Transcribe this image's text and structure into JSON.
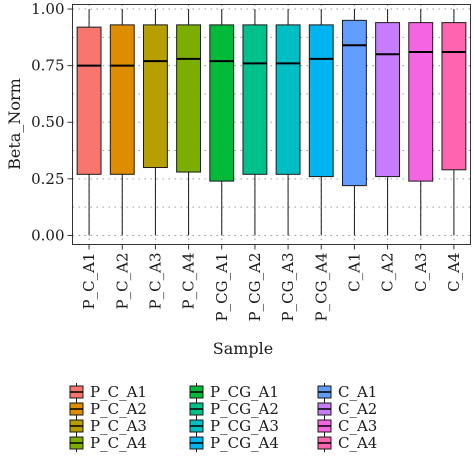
{
  "chart_data": {
    "type": "boxplot",
    "xlabel": "Sample",
    "ylabel": "Beta_Norm",
    "ylim": [
      -0.04,
      1.02
    ],
    "yticks": [
      0.0,
      0.25,
      0.5,
      0.75,
      1.0
    ],
    "ytick_labels": [
      "0.00",
      "0.25",
      "0.50",
      "0.75",
      "1.00"
    ],
    "grid": true,
    "legend_position": "bottom",
    "categories": [
      "P_C_A1",
      "P_C_A2",
      "P_C_A3",
      "P_C_A4",
      "P_CG_A1",
      "P_CG_A2",
      "P_CG_A3",
      "P_CG_A4",
      "C_A1",
      "C_A2",
      "C_A3",
      "C_A4"
    ],
    "colors": [
      "#f8766d",
      "#de8c00",
      "#b79f00",
      "#7cae00",
      "#00ba38",
      "#00c08b",
      "#00bfc4",
      "#00b4f0",
      "#619cff",
      "#c77cff",
      "#f564e3",
      "#ff64b0"
    ],
    "boxes": [
      {
        "min": 0.0,
        "q1": 0.27,
        "median": 0.75,
        "q3": 0.92,
        "max": 1.0
      },
      {
        "min": 0.0,
        "q1": 0.27,
        "median": 0.75,
        "q3": 0.93,
        "max": 1.0
      },
      {
        "min": 0.0,
        "q1": 0.3,
        "median": 0.77,
        "q3": 0.93,
        "max": 1.0
      },
      {
        "min": 0.0,
        "q1": 0.28,
        "median": 0.78,
        "q3": 0.93,
        "max": 1.0
      },
      {
        "min": 0.0,
        "q1": 0.24,
        "median": 0.77,
        "q3": 0.93,
        "max": 1.0
      },
      {
        "min": 0.0,
        "q1": 0.27,
        "median": 0.76,
        "q3": 0.93,
        "max": 1.0
      },
      {
        "min": 0.0,
        "q1": 0.27,
        "median": 0.76,
        "q3": 0.93,
        "max": 1.0
      },
      {
        "min": 0.0,
        "q1": 0.26,
        "median": 0.78,
        "q3": 0.93,
        "max": 1.0
      },
      {
        "min": 0.0,
        "q1": 0.22,
        "median": 0.84,
        "q3": 0.95,
        "max": 1.0
      },
      {
        "min": 0.0,
        "q1": 0.26,
        "median": 0.8,
        "q3": 0.94,
        "max": 1.0
      },
      {
        "min": 0.0,
        "q1": 0.24,
        "median": 0.81,
        "q3": 0.94,
        "max": 1.0
      },
      {
        "min": 0.0,
        "q1": 0.29,
        "median": 0.81,
        "q3": 0.94,
        "max": 1.0
      }
    ],
    "legend": {
      "entries": [
        "P_C_A1",
        "P_C_A2",
        "P_C_A3",
        "P_C_A4",
        "P_CG_A1",
        "P_CG_A2",
        "P_CG_A3",
        "P_CG_A4",
        "C_A1",
        "C_A2",
        "C_A3",
        "C_A4"
      ],
      "columns": 3
    }
  }
}
